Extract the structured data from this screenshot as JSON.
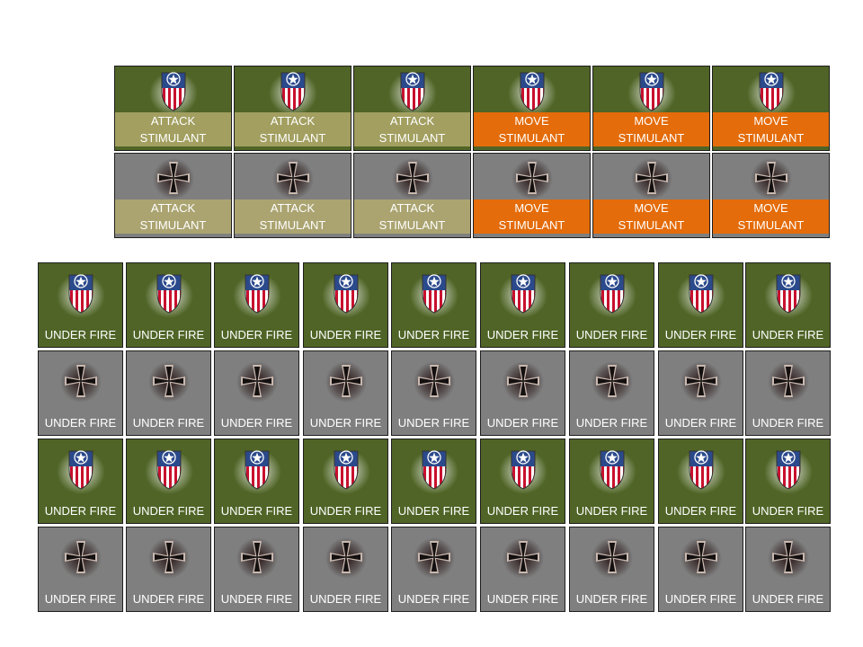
{
  "stimulant_counters": {
    "rows": [
      {
        "faction": "us",
        "emblem": "us-shield-icon",
        "labels": [
          "attack",
          "attack",
          "attack",
          "move",
          "move",
          "move"
        ]
      },
      {
        "faction": "de",
        "emblem": "iron-cross-icon",
        "labels": [
          "attack",
          "attack",
          "attack",
          "move",
          "move",
          "move"
        ]
      }
    ],
    "attack_label": {
      "line1": "ATTACK",
      "line2": "STIMULANT"
    },
    "move_label": {
      "line1": "MOVE",
      "line2": "STIMULANT"
    }
  },
  "under_fire_counters": {
    "label": "UNDER FIRE",
    "columns": 9,
    "rows": [
      {
        "faction": "us",
        "emblem": "us-shield-icon"
      },
      {
        "faction": "de",
        "emblem": "iron-cross-icon"
      },
      {
        "faction": "us",
        "emblem": "us-shield-icon"
      },
      {
        "faction": "de",
        "emblem": "iron-cross-icon"
      }
    ]
  },
  "colors": {
    "us_background": "#4f6426",
    "de_background": "#7f7f7f",
    "attack_band": "#b4ac6e",
    "move_band": "#e46c0a"
  }
}
